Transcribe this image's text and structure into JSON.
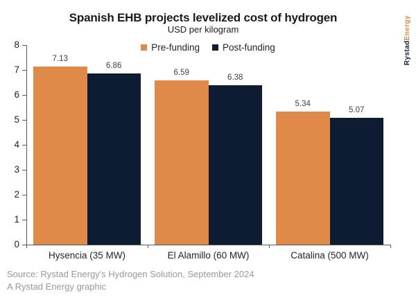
{
  "title": "Spanish EHB projects levelized cost of hydrogen",
  "subtitle": "USD per kilogram",
  "legend": [
    {
      "label": "Pre-funding",
      "color": "#E08A4A"
    },
    {
      "label": "Post-funding",
      "color": "#0D1B33"
    }
  ],
  "brand": {
    "part1": "Rystad",
    "part2": "Energy",
    "part1_color": "#0D1B33",
    "part2_color": "#E08A4A"
  },
  "source_line1": "Source: Rystad Energy's Hydrogen Solution, September 2024",
  "source_line2": "A Rystad Energy graphic",
  "colors": {
    "pre_funding": "#E08A4A",
    "post_funding": "#0D1B33",
    "axis": "#58595B",
    "value_label": "#404041",
    "source_text": "#97999C",
    "background": "#FFFFFF"
  },
  "chart_data": {
    "type": "bar",
    "title": "Spanish EHB projects levelized cost of hydrogen",
    "subtitle": "USD per kilogram",
    "ylabel": "USD per kilogram",
    "categories": [
      "Hysencia (35 MW)",
      "El Alamillo (60 MW)",
      "Catalina (500 MW)"
    ],
    "series": [
      {
        "name": "Pre-funding",
        "color": "#E08A4A",
        "values": [
          7.13,
          6.59,
          5.34
        ]
      },
      {
        "name": "Post-funding",
        "color": "#0D1B33",
        "values": [
          6.86,
          6.38,
          5.07
        ]
      }
    ],
    "ylim": [
      0,
      8
    ],
    "yticks": [
      0,
      1,
      2,
      3,
      4,
      5,
      6,
      7,
      8
    ],
    "grid": false,
    "legend_position": "top",
    "value_labels": true
  }
}
